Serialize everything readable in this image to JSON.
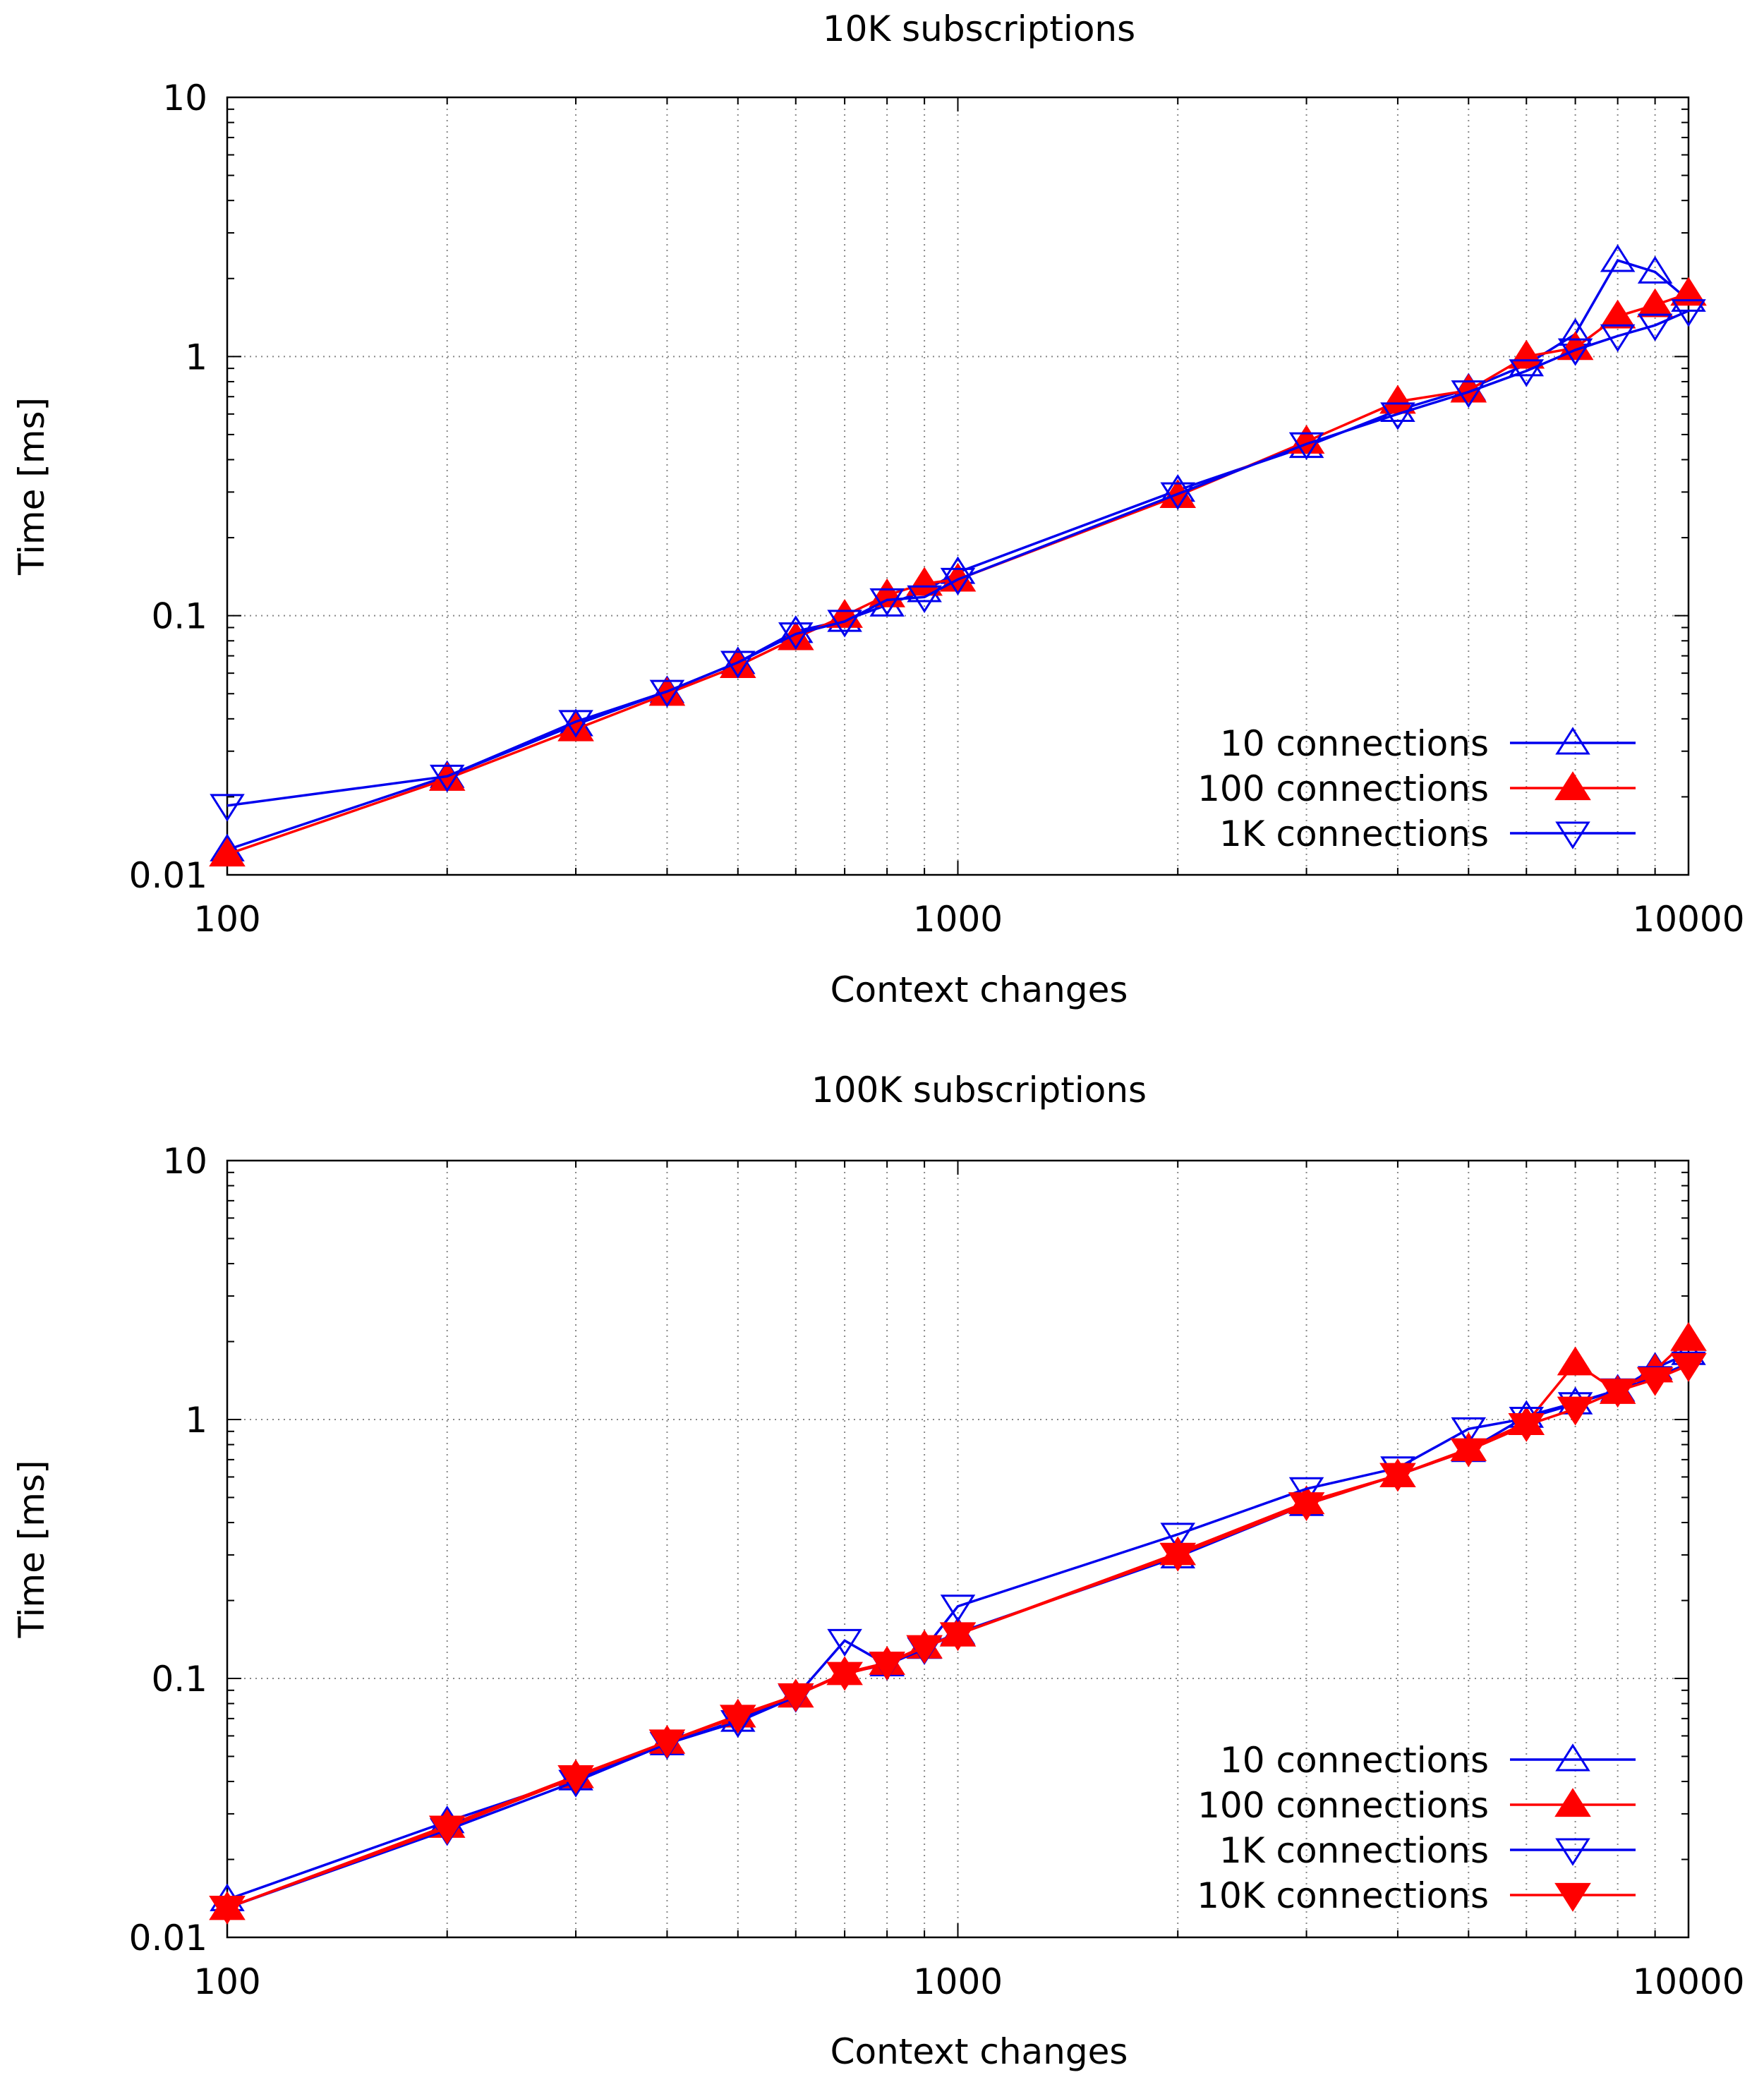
{
  "chart_data": [
    {
      "type": "line",
      "title": "10K subscriptions",
      "xlabel": "Context changes",
      "ylabel": "Time [ms]",
      "xscale": "log",
      "yscale": "log",
      "xlim": [
        100,
        10000
      ],
      "ylim": [
        0.01,
        10
      ],
      "xticks": [
        {
          "v": 100,
          "label": "100"
        },
        {
          "v": 1000,
          "label": "1000"
        },
        {
          "v": 10000,
          "label": "10000"
        }
      ],
      "yticks": [
        {
          "v": 0.01,
          "label": "0.01"
        },
        {
          "v": 0.1,
          "label": "0.1"
        },
        {
          "v": 1,
          "label": "1"
        },
        {
          "v": 10,
          "label": "10"
        }
      ],
      "grid": true,
      "legend_position": "bottom-right",
      "x": [
        100,
        200,
        300,
        400,
        500,
        600,
        700,
        800,
        900,
        1000,
        2000,
        3000,
        4000,
        5000,
        6000,
        7000,
        8000,
        9000,
        10000
      ],
      "series": [
        {
          "name": "10 connections",
          "color": "#0000ee",
          "marker": "triangle-up-open",
          "values": [
            0.0125,
            0.024,
            0.038,
            0.051,
            0.066,
            0.087,
            0.096,
            0.11,
            0.125,
            0.147,
            0.305,
            0.45,
            0.62,
            0.75,
            0.93,
            1.22,
            2.35,
            2.12,
            1.65
          ]
        },
        {
          "name": "100 connections",
          "color": "#ff0000",
          "marker": "triangle-up-filled",
          "values": [
            0.012,
            0.0235,
            0.0365,
            0.05,
            0.064,
            0.082,
            0.1,
            0.12,
            0.133,
            0.138,
            0.29,
            0.47,
            0.67,
            0.74,
            1.0,
            1.08,
            1.43,
            1.58,
            1.75
          ]
        },
        {
          "name": "1K connections",
          "color": "#0000ee",
          "marker": "triangle-down-open",
          "values": [
            0.0185,
            0.024,
            0.039,
            0.051,
            0.066,
            0.085,
            0.095,
            0.115,
            0.118,
            0.138,
            0.295,
            0.46,
            0.6,
            0.73,
            0.88,
            1.06,
            1.2,
            1.32,
            1.5
          ]
        }
      ]
    },
    {
      "type": "line",
      "title": "100K subscriptions",
      "xlabel": "Context changes",
      "ylabel": "Time [ms]",
      "xscale": "log",
      "yscale": "log",
      "xlim": [
        100,
        10000
      ],
      "ylim": [
        0.01,
        10
      ],
      "xticks": [
        {
          "v": 100,
          "label": "100"
        },
        {
          "v": 1000,
          "label": "1000"
        },
        {
          "v": 10000,
          "label": "10000"
        }
      ],
      "yticks": [
        {
          "v": 0.01,
          "label": "0.01"
        },
        {
          "v": 0.1,
          "label": "0.1"
        },
        {
          "v": 1,
          "label": "1"
        },
        {
          "v": 10,
          "label": "10"
        }
      ],
      "grid": true,
      "legend_position": "bottom-right",
      "x": [
        100,
        200,
        300,
        400,
        500,
        600,
        700,
        800,
        900,
        1000,
        2000,
        3000,
        4000,
        5000,
        6000,
        7000,
        8000,
        9000,
        10000
      ],
      "series": [
        {
          "name": "10 connections",
          "color": "#0000ee",
          "marker": "triangle-up-open",
          "values": [
            0.014,
            0.028,
            0.041,
            0.056,
            0.069,
            0.086,
            0.105,
            0.113,
            0.132,
            0.15,
            0.295,
            0.47,
            0.61,
            0.76,
            1.03,
            1.16,
            1.3,
            1.58,
            1.8
          ]
        },
        {
          "name": "100 connections",
          "color": "#ff0000",
          "marker": "triangle-up-filled",
          "values": [
            0.013,
            0.027,
            0.042,
            0.057,
            0.072,
            0.086,
            0.105,
            0.115,
            0.133,
            0.148,
            0.305,
            0.48,
            0.61,
            0.77,
            0.97,
            1.65,
            1.28,
            1.55,
            2.05
          ]
        },
        {
          "name": "1K connections",
          "color": "#0000ee",
          "marker": "triangle-down-open",
          "values": [
            0.013,
            0.026,
            0.04,
            0.056,
            0.068,
            0.085,
            0.14,
            0.113,
            0.13,
            0.19,
            0.36,
            0.54,
            0.65,
            0.92,
            1.01,
            1.15,
            1.3,
            1.45,
            1.65
          ]
        },
        {
          "name": "10K connections",
          "color": "#ff0000",
          "marker": "triangle-down-filled",
          "values": [
            0.013,
            0.0265,
            0.0415,
            0.057,
            0.071,
            0.086,
            0.104,
            0.114,
            0.132,
            0.148,
            0.3,
            0.47,
            0.61,
            0.76,
            0.95,
            1.1,
            1.29,
            1.43,
            1.62
          ]
        }
      ]
    }
  ]
}
